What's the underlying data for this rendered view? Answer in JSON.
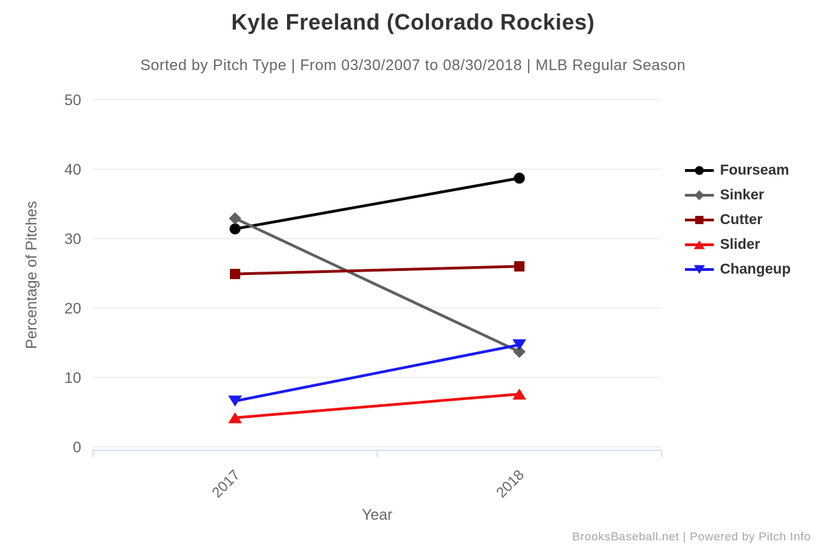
{
  "chart_data": {
    "type": "line",
    "title": "Kyle Freeland (Colorado Rockies)",
    "subtitle": "Sorted by Pitch Type | From 03/30/2007 to 08/30/2018 | MLB Regular Season",
    "xlabel": "Year",
    "ylabel": "Percentage of Pitches",
    "categories": [
      "2017",
      "2018"
    ],
    "series": [
      {
        "name": "Fourseam",
        "marker": "circle",
        "color": "#000000",
        "values": [
          31.4,
          38.7
        ]
      },
      {
        "name": "Sinker",
        "marker": "diamond",
        "color": "#606060",
        "values": [
          32.9,
          13.7
        ]
      },
      {
        "name": "Cutter",
        "marker": "square",
        "color": "#8b0000",
        "values": [
          24.9,
          26.0
        ]
      },
      {
        "name": "Slider",
        "marker": "triangle-up",
        "color": "#ee1111",
        "values": [
          4.2,
          7.6
        ]
      },
      {
        "name": "Changeup",
        "marker": "triangle-down",
        "color": "#1a1aee",
        "values": [
          6.6,
          14.7
        ]
      }
    ],
    "ylim": [
      0,
      50
    ],
    "yticks": [
      0,
      10,
      20,
      30,
      40,
      50
    ],
    "grid": true,
    "legend_position": "right",
    "credits": "BrooksBaseball.net | Powered by Pitch Info",
    "colors": {
      "grid": "#e6e6e6",
      "axis": "#ccd6eb",
      "tick_label": "#666666",
      "axis_title": "#666666",
      "title": "#333333",
      "subtitle": "#666666",
      "legend_text": "#333333",
      "credits": "#a6a6a6",
      "background": "#ffffff"
    }
  }
}
